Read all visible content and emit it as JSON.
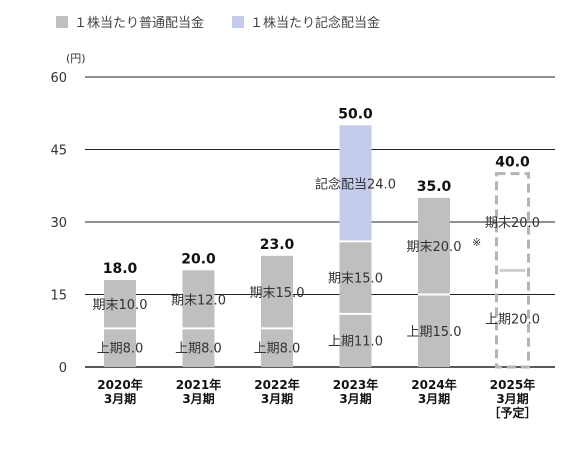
{
  "legend": {
    "regular": {
      "label": "１株当たり普通配当金",
      "color": "#bfbfbf"
    },
    "commemorative": {
      "label": "１株当たり記念配当金",
      "color": "#c5cbeb"
    }
  },
  "chart_data": {
    "type": "bar",
    "stacked": true,
    "ylabel": "(円)",
    "ylim": [
      0,
      60
    ],
    "yticks": [
      "0",
      "15",
      "30",
      "45",
      "60"
    ],
    "grid": true,
    "legend_position": "top",
    "categories": [
      [
        "2020年",
        "3月期"
      ],
      [
        "2021年",
        "3月期"
      ],
      [
        "2022年",
        "3月期"
      ],
      [
        "2023年",
        "3月期"
      ],
      [
        "2024年",
        "3月期"
      ],
      [
        "2025年",
        "3月期",
        "［予定］"
      ]
    ],
    "totals": [
      "18.0",
      "20.0",
      "23.0",
      "50.0",
      "35.0",
      "40.0"
    ],
    "forecast_index": 5,
    "series": [
      {
        "name": "上期",
        "values": [
          8.0,
          8.0,
          8.0,
          11.0,
          15.0,
          20.0
        ],
        "labels": [
          "上期8.0",
          "上期8.0",
          "上期8.0",
          "上期11.0",
          "上期15.0",
          "上期20.0"
        ]
      },
      {
        "name": "期末",
        "values": [
          10.0,
          12.0,
          15.0,
          15.0,
          20.0,
          20.0
        ],
        "labels": [
          "期末10.0",
          "期末12.0",
          "期末15.0",
          "期末15.0",
          "期末20.0",
          "期末20.0"
        ]
      },
      {
        "name": "記念配当",
        "values": [
          0,
          0,
          0,
          24.0,
          0,
          0
        ],
        "labels": [
          "",
          "",
          "",
          "記念配当24.0",
          "",
          ""
        ]
      }
    ],
    "annotations": [
      {
        "category_index": 4,
        "text": "※"
      }
    ]
  }
}
